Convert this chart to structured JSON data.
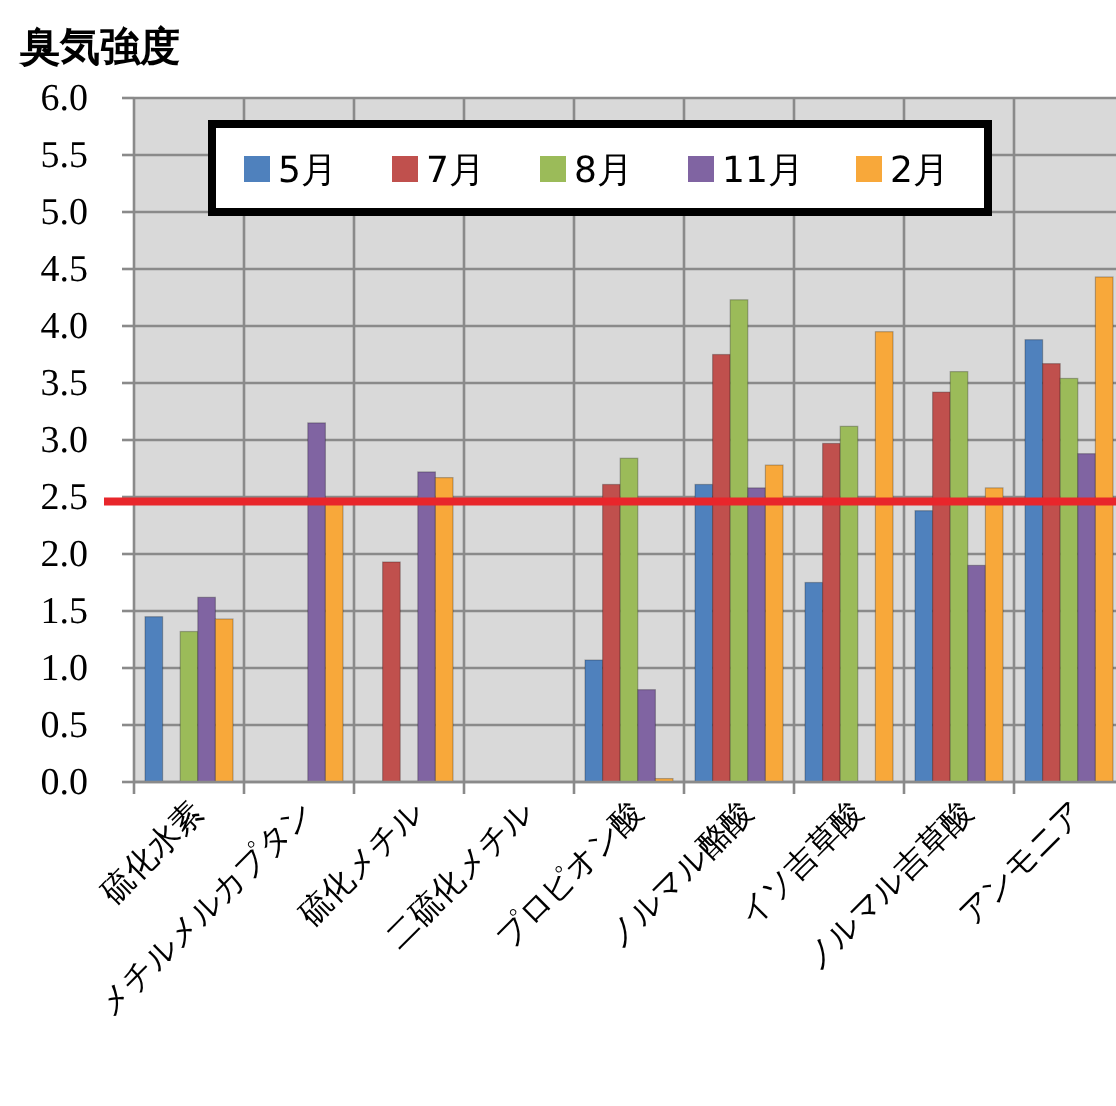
{
  "chart_data": {
    "type": "bar",
    "title": "臭気強度",
    "categories": [
      "硫化水素",
      "メチルメルカプタン",
      "硫化メチル",
      "二硫化メチル",
      "プロピオン酸",
      "ノルマル酪酸",
      "イソ吉草酸",
      "ノルマル吉草酸",
      "アンモニア"
    ],
    "series": [
      {
        "name": "5月",
        "color": "#4f81bd",
        "values": [
          1.45,
          null,
          null,
          null,
          1.07,
          2.61,
          1.75,
          2.38,
          3.88
        ]
      },
      {
        "name": "7月",
        "color": "#c0504d",
        "values": [
          null,
          null,
          1.93,
          null,
          2.61,
          3.75,
          2.97,
          3.42,
          3.67
        ]
      },
      {
        "name": "8月",
        "color": "#9bbb59",
        "values": [
          1.32,
          null,
          null,
          null,
          2.84,
          4.23,
          3.12,
          3.6,
          3.54
        ]
      },
      {
        "name": "11月",
        "color": "#8064a2",
        "values": [
          1.62,
          3.15,
          2.72,
          null,
          0.81,
          2.58,
          null,
          1.9,
          2.88
        ]
      },
      {
        "name": "2月",
        "color": "#f8a83a",
        "values": [
          1.43,
          2.45,
          2.67,
          null,
          0.03,
          2.78,
          3.95,
          2.58,
          4.43
        ]
      }
    ],
    "ylim": [
      0,
      6
    ],
    "yticks": [
      {
        "value": 0,
        "label": "0.0"
      },
      {
        "value": 0.5,
        "label": "0.5"
      },
      {
        "value": 1,
        "label": "1.0"
      },
      {
        "value": 1.5,
        "label": "1.5"
      },
      {
        "value": 2,
        "label": "2.0"
      },
      {
        "value": 2.5,
        "label": "2.5"
      },
      {
        "value": 3,
        "label": "3.0"
      },
      {
        "value": 3.5,
        "label": "3.5"
      },
      {
        "value": 4,
        "label": "4.0"
      },
      {
        "value": 4.5,
        "label": "4.5"
      },
      {
        "value": 5,
        "label": "5.0"
      },
      {
        "value": 5.5,
        "label": "5.5"
      },
      {
        "value": 6,
        "label": "6.0"
      }
    ],
    "ref_lines": [
      {
        "axis": "y",
        "value": 2.46,
        "color": "#e8262b"
      }
    ],
    "grid": true,
    "legend": "top"
  }
}
